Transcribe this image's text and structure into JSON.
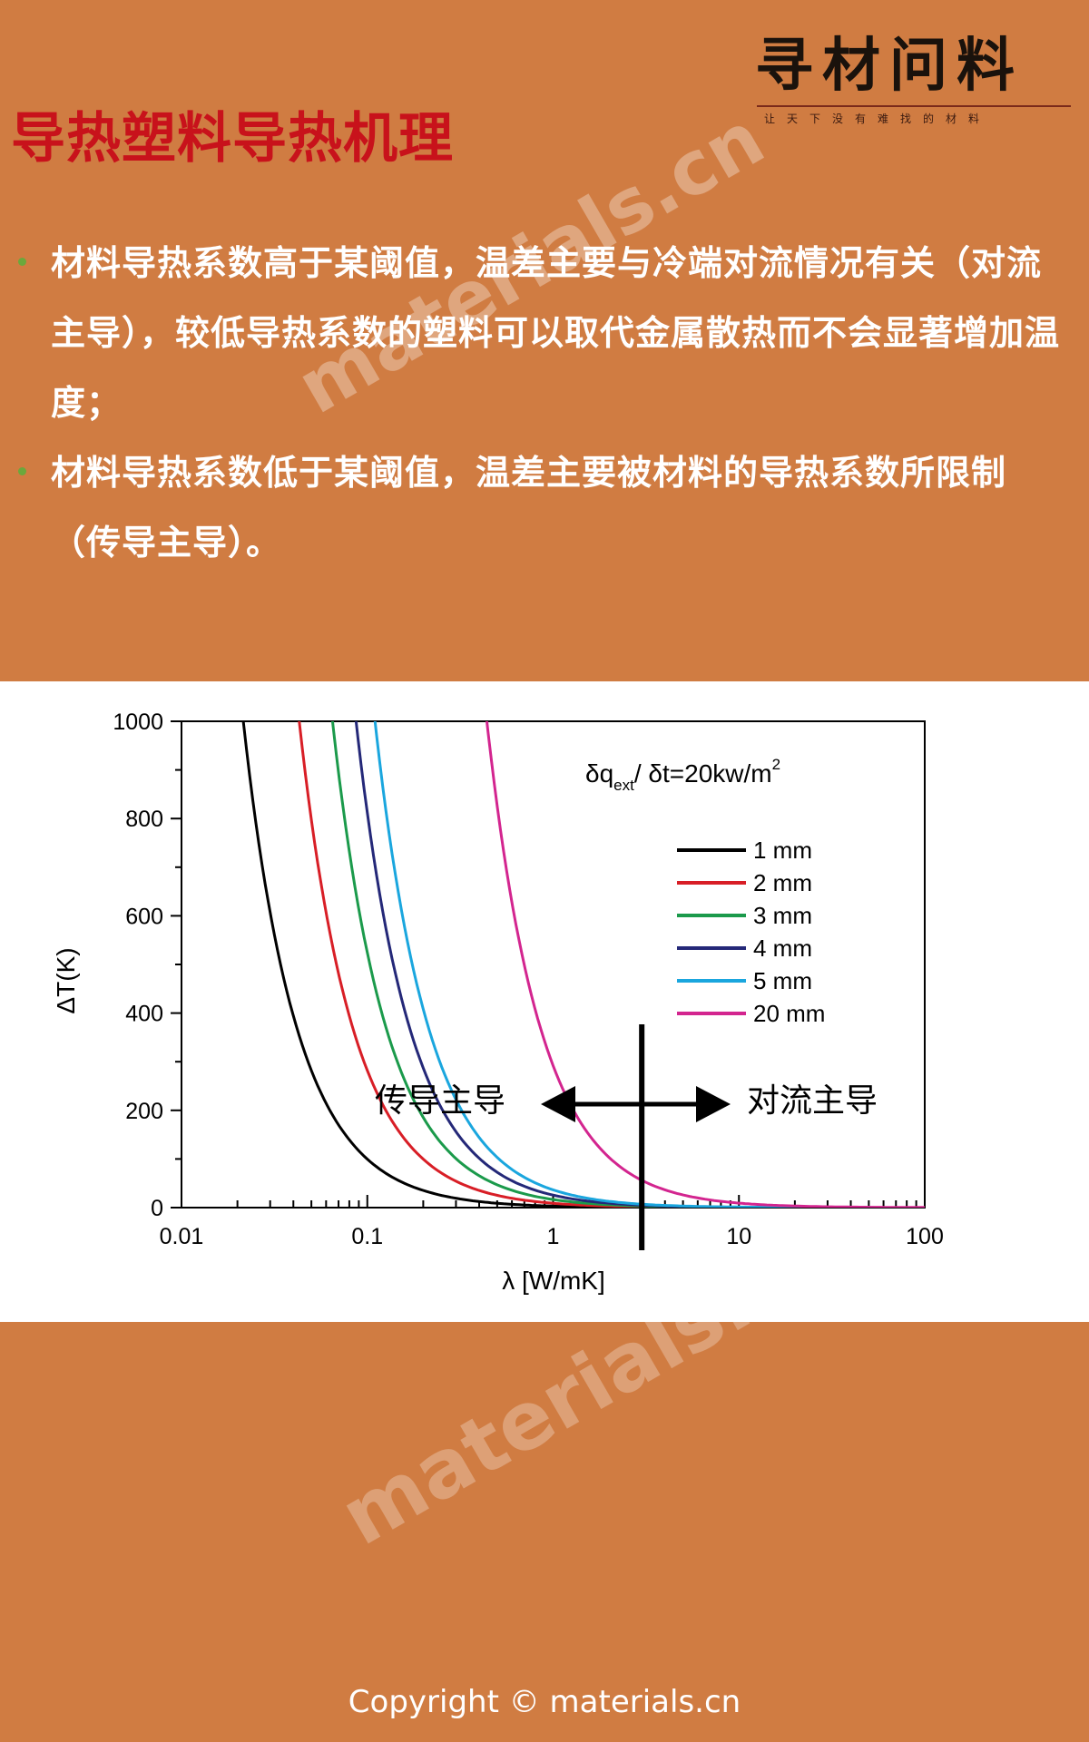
{
  "title": "导热塑料导热机理",
  "logo": {
    "main": "寻材问料",
    "tagline": "让天下没有难找的材料"
  },
  "bullets": [
    "材料导热系数高于某阈值，温差主要与冷端对流情况有关（对流主导），较低导热系数的塑料可以取代金属散热而不会显著增加温度；",
    "材料导热系数低于某阈值，温差主要被材料的导热系数所限制（传导主导）。"
  ],
  "watermark": "materials.cn",
  "copyright": "Copyright © materials.cn",
  "colors": {
    "background": "#d07c42",
    "title": "#c8121b",
    "bullet_dot": "#6aa83c"
  },
  "chart_data": {
    "type": "line",
    "xlabel": "λ [W/mK]",
    "ylabel": "ΔT(K)",
    "xscale": "log",
    "xlim": [
      0.01,
      100
    ],
    "ylim": [
      0,
      1000
    ],
    "xticks": [
      "0.01",
      "0.1",
      "1",
      "10",
      "100"
    ],
    "yticks": [
      "0",
      "200",
      "400",
      "600",
      "800",
      "1000"
    ],
    "annotation_formula": {
      "prefix": "δq",
      "sub": "ext",
      "middle": "/ δt=20kw/m",
      "sup": "2"
    },
    "legend_position": "upper-right",
    "series": [
      {
        "name": "1 mm",
        "color": "#000000",
        "a": 21.5
      },
      {
        "name": "2 mm",
        "color": "#d81e26",
        "a": 43
      },
      {
        "name": "3 mm",
        "color": "#1b9a4b",
        "a": 65
      },
      {
        "name": "4 mm",
        "color": "#242878",
        "a": 87
      },
      {
        "name": "5 mm",
        "color": "#1aa6de",
        "a": 110
      },
      {
        "name": "20 mm",
        "color": "#d3258f",
        "a": 440
      }
    ],
    "annotations": {
      "left": "传导主导",
      "right": "对流主导",
      "divider_x": 3
    }
  }
}
